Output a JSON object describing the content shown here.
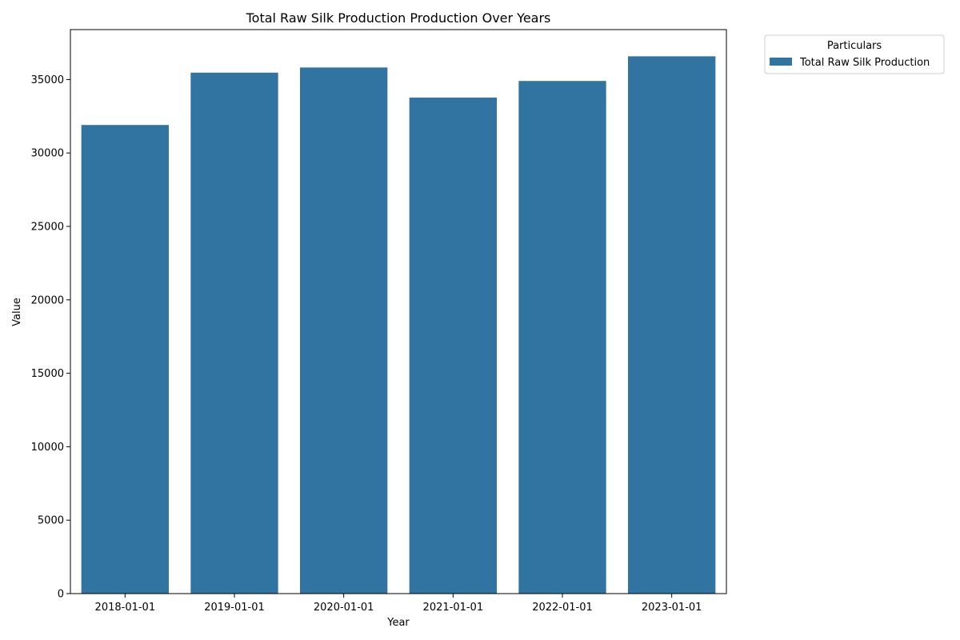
{
  "chart_data": {
    "type": "bar",
    "title": "Total Raw Silk Production Production Over Years",
    "xlabel": "Year",
    "ylabel": "Value",
    "categories": [
      "2018-01-01",
      "2019-01-01",
      "2020-01-01",
      "2021-01-01",
      "2022-01-01",
      "2023-01-01"
    ],
    "series": [
      {
        "name": "Total Raw Silk Production",
        "color": "#3274a1",
        "values": [
          31906,
          35468,
          35820,
          33770,
          34903,
          36582
        ]
      }
    ],
    "ylim": [
      0,
      38400
    ],
    "yticks": [
      0,
      5000,
      10000,
      15000,
      20000,
      25000,
      30000,
      35000
    ],
    "grid": false,
    "legend": {
      "title": "Particulars",
      "placement": "outside-top-right"
    }
  }
}
